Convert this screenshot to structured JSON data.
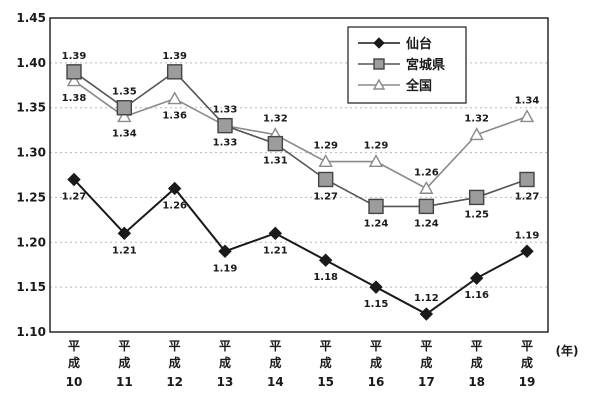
{
  "chart_data": {
    "type": "line",
    "title": "",
    "xlabel": "",
    "ylabel": "",
    "x_unit_label": "(年)",
    "ylim": [
      1.1,
      1.45
    ],
    "y_ticks": [
      "1.10",
      "1.15",
      "1.20",
      "1.25",
      "1.30",
      "1.35",
      "1.40",
      "1.45"
    ],
    "grid": "horizontal-dashed",
    "legend_position": "top-right",
    "categories": [
      {
        "era": "平成",
        "year": "10"
      },
      {
        "era": "平成",
        "year": "11"
      },
      {
        "era": "平成",
        "year": "12"
      },
      {
        "era": "平成",
        "year": "13"
      },
      {
        "era": "平成",
        "year": "14"
      },
      {
        "era": "平成",
        "year": "15"
      },
      {
        "era": "平成",
        "year": "16"
      },
      {
        "era": "平成",
        "year": "17"
      },
      {
        "era": "平成",
        "year": "18"
      },
      {
        "era": "平成",
        "year": "19"
      }
    ],
    "series": [
      {
        "name": "仙台",
        "marker": "diamond",
        "color": "#1a1a1a",
        "values": [
          1.27,
          1.21,
          1.26,
          1.19,
          1.21,
          1.18,
          1.15,
          1.12,
          1.16,
          1.19
        ],
        "labels": [
          "1.27",
          "1.21",
          "1.26",
          "1.19",
          "1.21",
          "1.18",
          "1.15",
          "1.12",
          "1.16",
          "1.19"
        ],
        "label_pos": [
          "below",
          "below",
          "below",
          "below",
          "below",
          "below",
          "below",
          "above",
          "below",
          "above"
        ]
      },
      {
        "name": "宮城県",
        "marker": "square",
        "color": "#555555",
        "values": [
          1.39,
          1.35,
          1.39,
          1.33,
          1.31,
          1.27,
          1.24,
          1.24,
          1.25,
          1.27
        ],
        "labels": [
          "1.39",
          "1.35",
          "1.39",
          "1.33",
          "1.31",
          "1.27",
          "1.24",
          "1.24",
          "1.25",
          "1.27"
        ],
        "label_pos": [
          "above",
          "above",
          "above",
          "above",
          "below",
          "below",
          "below",
          "below",
          "below",
          "below"
        ]
      },
      {
        "name": "全国",
        "marker": "triangle",
        "color": "#8a8a8a",
        "values": [
          1.38,
          1.34,
          1.36,
          1.33,
          1.32,
          1.29,
          1.29,
          1.26,
          1.32,
          1.34
        ],
        "labels": [
          "1.38",
          "1.34",
          "1.36",
          "1.33",
          "1.32",
          "1.29",
          "1.29",
          "1.26",
          "1.32",
          "1.34"
        ],
        "label_pos": [
          "below",
          "below",
          "below",
          "below",
          "above",
          "above",
          "above",
          "above",
          "above",
          "above"
        ]
      }
    ]
  }
}
